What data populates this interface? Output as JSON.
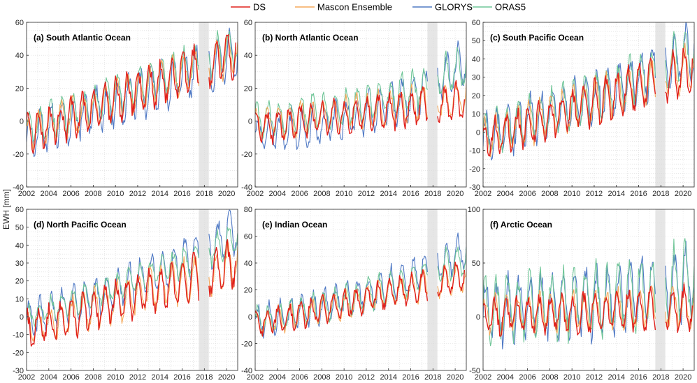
{
  "figure": {
    "ylabel": "EWH [mm]",
    "legend": [
      {
        "name": "DS",
        "color": "#e0201b"
      },
      {
        "name": "Mascon Ensemble",
        "color": "#f5a95a"
      },
      {
        "name": "GLORYS",
        "color": "#4e78c4"
      },
      {
        "name": "ORAS5",
        "color": "#6fc597"
      }
    ]
  },
  "chart_data": [
    {
      "type": "line",
      "title": "(a) South Atlantic Ocean",
      "xlim": [
        2002,
        2021
      ],
      "ylim": [
        -40,
        60
      ],
      "yticks": [
        -40,
        -20,
        0,
        20,
        40,
        60
      ],
      "xticks": [
        2002,
        2004,
        2006,
        2008,
        2010,
        2012,
        2014,
        2016,
        2018,
        2020
      ],
      "gap": [
        2017.5,
        2018.4
      ],
      "trend": [
        -8,
        42
      ],
      "amp": {
        "DS": 10,
        "Mascon": 9,
        "GLORYS": 11,
        "ORAS5": 9
      },
      "offset": {
        "DS": 0,
        "Mascon": 0,
        "GLORYS": -2,
        "ORAS5": 3
      },
      "grow": {
        "GLORYS": 0,
        "ORAS5": 0
      }
    },
    {
      "type": "line",
      "title": "(b) North Atlantic Ocean",
      "xlim": [
        2002,
        2021
      ],
      "ylim": [
        -40,
        60
      ],
      "yticks": [
        -40,
        -20,
        0,
        20,
        40,
        60
      ],
      "xticks": [
        2002,
        2004,
        2006,
        2008,
        2010,
        2012,
        2014,
        2016,
        2018,
        2020
      ],
      "gap": [
        2017.5,
        2018.4
      ],
      "trend": [
        -4,
        12
      ],
      "amp": {
        "DS": 8,
        "Mascon": 8,
        "GLORYS": 10,
        "ORAS5": 9
      },
      "offset": {
        "DS": 0,
        "Mascon": 2,
        "GLORYS": -4,
        "ORAS5": 4
      },
      "grow": {
        "GLORYS": 28,
        "ORAS5": 18
      }
    },
    {
      "type": "line",
      "title": "(c) South Pacific Ocean",
      "xlim": [
        2002,
        2021
      ],
      "ylim": [
        -30,
        60
      ],
      "yticks": [
        -30,
        -20,
        -10,
        0,
        10,
        20,
        30,
        40,
        50,
        60
      ],
      "xticks": [
        2002,
        2004,
        2006,
        2008,
        2010,
        2012,
        2014,
        2016,
        2018,
        2020
      ],
      "gap": [
        2017.5,
        2018.4
      ],
      "trend": [
        -5,
        35
      ],
      "amp": {
        "DS": 9,
        "Mascon": 9,
        "GLORYS": 11,
        "ORAS5": 10
      },
      "offset": {
        "DS": 0,
        "Mascon": 1,
        "GLORYS": 2,
        "ORAS5": 3
      },
      "grow": {
        "GLORYS": 8,
        "ORAS5": 6
      }
    },
    {
      "type": "line",
      "title": "(d) North Pacific Ocean",
      "xlim": [
        2002,
        2021
      ],
      "ylim": [
        -30,
        60
      ],
      "yticks": [
        -30,
        -20,
        -10,
        0,
        10,
        20,
        30,
        40,
        50,
        60
      ],
      "xticks": [
        2002,
        2004,
        2006,
        2008,
        2010,
        2012,
        2014,
        2016,
        2018,
        2020
      ],
      "gap": [
        2017.5,
        2018.4
      ],
      "trend": [
        -8,
        30
      ],
      "amp": {
        "DS": 9,
        "Mascon": 9,
        "GLORYS": 9,
        "ORAS5": 6
      },
      "offset": {
        "DS": 0,
        "Mascon": 0,
        "GLORYS": 6,
        "ORAS5": 8
      },
      "grow": {
        "GLORYS": 12,
        "ORAS5": 6
      }
    },
    {
      "type": "line",
      "title": "(e) Indian Ocean",
      "xlim": [
        2002,
        2021
      ],
      "ylim": [
        -40,
        80
      ],
      "yticks": [
        -40,
        -20,
        0,
        20,
        40,
        60,
        80
      ],
      "xticks": [
        2002,
        2004,
        2006,
        2008,
        2010,
        2012,
        2014,
        2016,
        2018,
        2020
      ],
      "gap": [
        2017.5,
        2018.4
      ],
      "trend": [
        -6,
        30
      ],
      "amp": {
        "DS": 8,
        "Mascon": 8,
        "GLORYS": 10,
        "ORAS5": 9
      },
      "offset": {
        "DS": 0,
        "Mascon": 0,
        "GLORYS": 2,
        "ORAS5": 2
      },
      "grow": {
        "GLORYS": 18,
        "ORAS5": 12
      }
    },
    {
      "type": "line",
      "title": "(f) Arctic Ocean",
      "xlim": [
        2002,
        2021
      ],
      "ylim": [
        -50,
        100
      ],
      "yticks": [
        -50,
        0,
        50,
        100
      ],
      "xticks": [
        2002,
        2004,
        2006,
        2008,
        2010,
        2012,
        2014,
        2016,
        2018,
        2020
      ],
      "gap": [
        2017.5,
        2018.4
      ],
      "trend": [
        0,
        8
      ],
      "amp": {
        "DS": 14,
        "Mascon": 14,
        "GLORYS": 25,
        "ORAS5": 25
      },
      "offset": {
        "DS": 0,
        "Mascon": 2,
        "GLORYS": 6,
        "ORAS5": 8
      },
      "grow": {
        "GLORYS": 20,
        "ORAS5": 22
      }
    }
  ]
}
